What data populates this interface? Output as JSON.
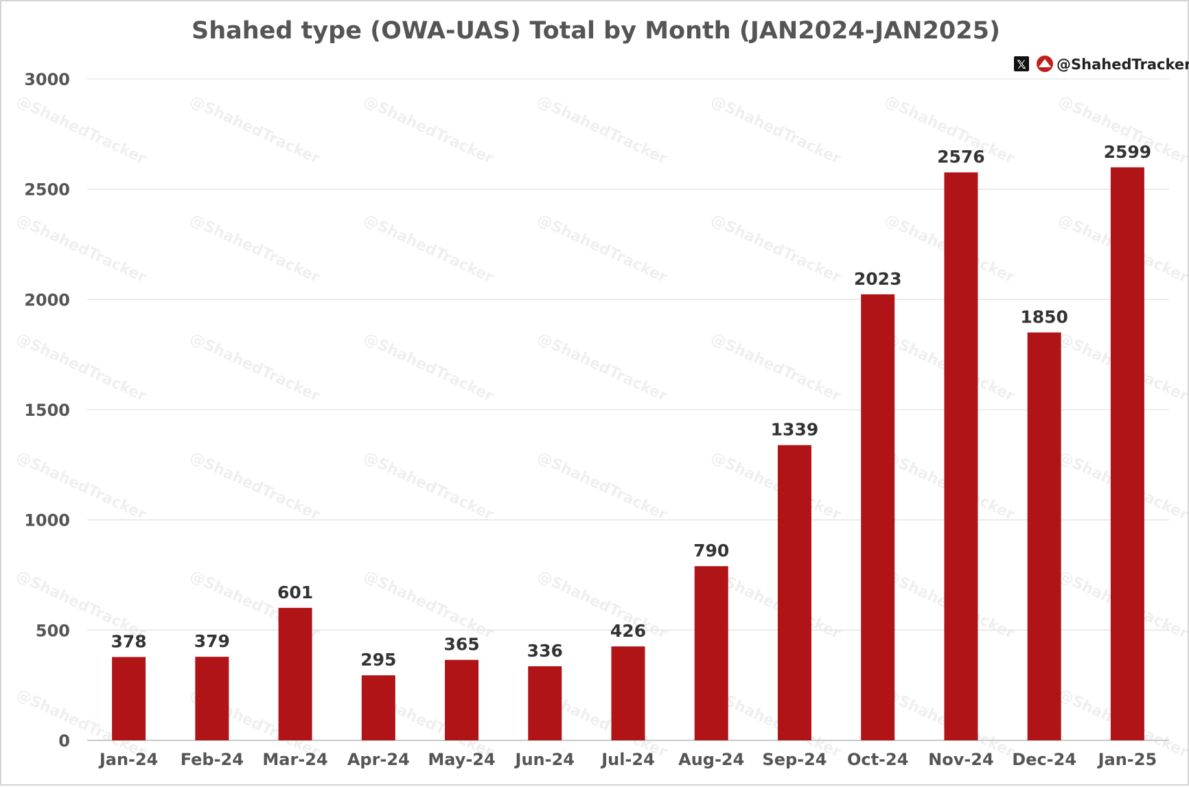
{
  "chart_data": {
    "type": "bar",
    "title": "Shahed type (OWA-UAS) Total by Month (JAN2024-JAN2025)",
    "categories": [
      "Jan-24",
      "Feb-24",
      "Mar-24",
      "Apr-24",
      "May-24",
      "Jun-24",
      "Jul-24",
      "Aug-24",
      "Sep-24",
      "Oct-24",
      "Nov-24",
      "Dec-24",
      "Jan-25"
    ],
    "values": [
      378,
      379,
      601,
      295,
      365,
      336,
      426,
      790,
      1339,
      2023,
      2576,
      1850,
      2599
    ],
    "ylim": [
      0,
      3000
    ],
    "yticks": [
      0,
      500,
      1000,
      1500,
      2000,
      2500,
      3000
    ],
    "xlabel": "",
    "ylabel": "",
    "grid": true,
    "data_labels": true,
    "bar_color": "#b01416"
  },
  "branding": {
    "handle": "@ShahedTracker",
    "icons": [
      "x-logo-icon",
      "shahedtracker-logo-icon"
    ],
    "watermark": "@ShahedTracker"
  }
}
